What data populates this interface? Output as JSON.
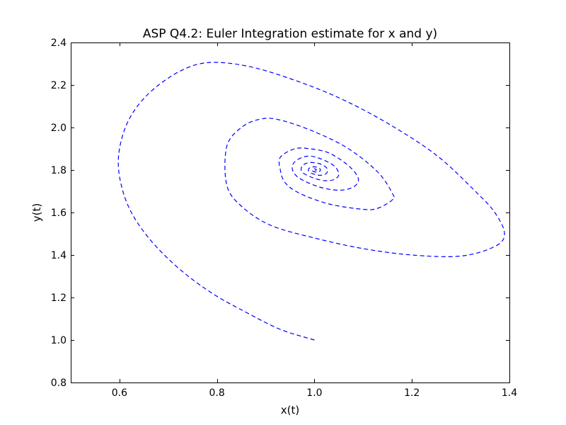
{
  "chart_data": {
    "type": "line",
    "title": "ASP Q4.2: Euler Integration estimate for x and y)",
    "xlabel": "x(t)",
    "ylabel": "y(t)",
    "xlim": [
      0.5,
      1.4
    ],
    "ylim": [
      0.8,
      2.4
    ],
    "xticks": [
      "0.6",
      "0.8",
      "1.0",
      "1.2",
      "1.4"
    ],
    "yticks": [
      "0.8",
      "1.0",
      "1.2",
      "1.4",
      "1.6",
      "1.8",
      "2.0",
      "2.2",
      "2.4"
    ],
    "grid": false,
    "series": [
      {
        "color": "#0000ff",
        "linestyle": "dashed",
        "points": [
          [
            1.0,
            1.0
          ],
          [
            0.93,
            1.05
          ],
          [
            0.86,
            1.13
          ],
          [
            0.79,
            1.22
          ],
          [
            0.72,
            1.34
          ],
          [
            0.66,
            1.48
          ],
          [
            0.62,
            1.62
          ],
          [
            0.6,
            1.77
          ],
          [
            0.6,
            1.9
          ],
          [
            0.62,
            2.04
          ],
          [
            0.66,
            2.16
          ],
          [
            0.72,
            2.26
          ],
          [
            0.78,
            2.305
          ],
          [
            0.86,
            2.29
          ],
          [
            0.95,
            2.23
          ],
          [
            1.05,
            2.14
          ],
          [
            1.15,
            2.02
          ],
          [
            1.25,
            1.87
          ],
          [
            1.33,
            1.7
          ],
          [
            1.37,
            1.6
          ],
          [
            1.39,
            1.5
          ],
          [
            1.37,
            1.44
          ],
          [
            1.3,
            1.395
          ],
          [
            1.2,
            1.4
          ],
          [
            1.1,
            1.43
          ],
          [
            1.0,
            1.48
          ],
          [
            0.91,
            1.54
          ],
          [
            0.85,
            1.63
          ],
          [
            0.82,
            1.73
          ],
          [
            0.82,
            1.91
          ],
          [
            0.85,
            2.0
          ],
          [
            0.89,
            2.04
          ],
          [
            0.93,
            2.035
          ],
          [
            1.0,
            1.98
          ],
          [
            1.07,
            1.9
          ],
          [
            1.13,
            1.79
          ],
          [
            1.16,
            1.69
          ],
          [
            1.16,
            1.66
          ],
          [
            1.13,
            1.62
          ],
          [
            1.1,
            1.615
          ],
          [
            1.03,
            1.64
          ],
          [
            0.97,
            1.69
          ],
          [
            0.94,
            1.74
          ],
          [
            0.93,
            1.8
          ],
          [
            0.93,
            1.86
          ],
          [
            0.96,
            1.9
          ],
          [
            0.99,
            1.9
          ],
          [
            1.03,
            1.88
          ],
          [
            1.07,
            1.82
          ],
          [
            1.09,
            1.76
          ],
          [
            1.08,
            1.72
          ],
          [
            1.05,
            1.705
          ],
          [
            1.01,
            1.72
          ],
          [
            0.97,
            1.76
          ],
          [
            0.955,
            1.8
          ],
          [
            0.96,
            1.84
          ],
          [
            0.985,
            1.865
          ],
          [
            1.01,
            1.855
          ],
          [
            1.04,
            1.82
          ],
          [
            1.05,
            1.78
          ],
          [
            1.04,
            1.755
          ],
          [
            1.02,
            1.75
          ],
          [
            0.995,
            1.765
          ],
          [
            0.975,
            1.79
          ],
          [
            0.975,
            1.82
          ],
          [
            0.99,
            1.835
          ],
          [
            1.01,
            1.83
          ],
          [
            1.025,
            1.81
          ],
          [
            1.025,
            1.785
          ],
          [
            1.012,
            1.775
          ],
          [
            0.997,
            1.782
          ],
          [
            0.988,
            1.795
          ],
          [
            0.99,
            1.81
          ],
          [
            1.0,
            1.815
          ],
          [
            1.01,
            1.808
          ],
          [
            1.012,
            1.797
          ],
          [
            1.005,
            1.79
          ],
          [
            0.997,
            1.794
          ],
          [
            0.996,
            1.802
          ],
          [
            1.0,
            1.806
          ],
          [
            1.004,
            1.801
          ],
          [
            1.002,
            1.798
          ],
          [
            1.0,
            1.8
          ]
        ]
      }
    ]
  }
}
